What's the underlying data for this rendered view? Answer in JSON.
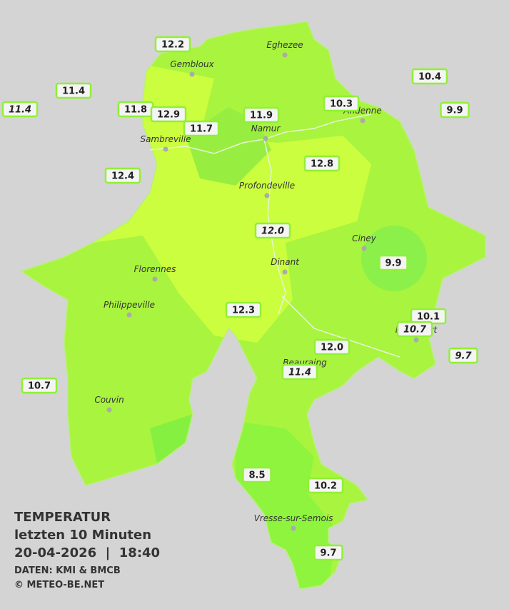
{
  "legend": {
    "title": "TEMPERATUR",
    "subtitle": "letzten 10 Minuten",
    "timestamp": "20-04-2026  |  18:40",
    "source": "DATEN: KMI & BMCB",
    "copyright": "© METEO-BE.NET"
  },
  "cities": [
    "Gembloux",
    "Eghezee",
    "Andenne",
    "Namur",
    "Sambreville",
    "Profondeville",
    "Ciney",
    "Florennes",
    "Dinant",
    "Philippeville",
    "Rochefort",
    "Beauraing",
    "Couvin",
    "Vresse-sur-Semois"
  ],
  "stations": [
    {
      "label": "12.2",
      "italic": false
    },
    {
      "label": "11.4",
      "italic": false
    },
    {
      "label": "11.4",
      "italic": true
    },
    {
      "label": "11.8",
      "italic": false
    },
    {
      "label": "12.9",
      "italic": false
    },
    {
      "label": "11.7",
      "italic": false
    },
    {
      "label": "11.9",
      "italic": false
    },
    {
      "label": "10.3",
      "italic": false
    },
    {
      "label": "10.4",
      "italic": false
    },
    {
      "label": "9.9",
      "italic": false
    },
    {
      "label": "12.4",
      "italic": false
    },
    {
      "label": "12.8",
      "italic": false
    },
    {
      "label": "12.0",
      "italic": true
    },
    {
      "label": "9.9",
      "italic": false
    },
    {
      "label": "12.3",
      "italic": false
    },
    {
      "label": "10.1",
      "italic": false
    },
    {
      "label": "10.7",
      "italic": true
    },
    {
      "label": "12.0",
      "italic": false
    },
    {
      "label": "9.7",
      "italic": true
    },
    {
      "label": "11.4",
      "italic": true
    },
    {
      "label": "10.7",
      "italic": false
    },
    {
      "label": "8.5",
      "italic": false
    },
    {
      "label": "10.2",
      "italic": false
    },
    {
      "label": "9.7",
      "italic": false
    }
  ]
}
